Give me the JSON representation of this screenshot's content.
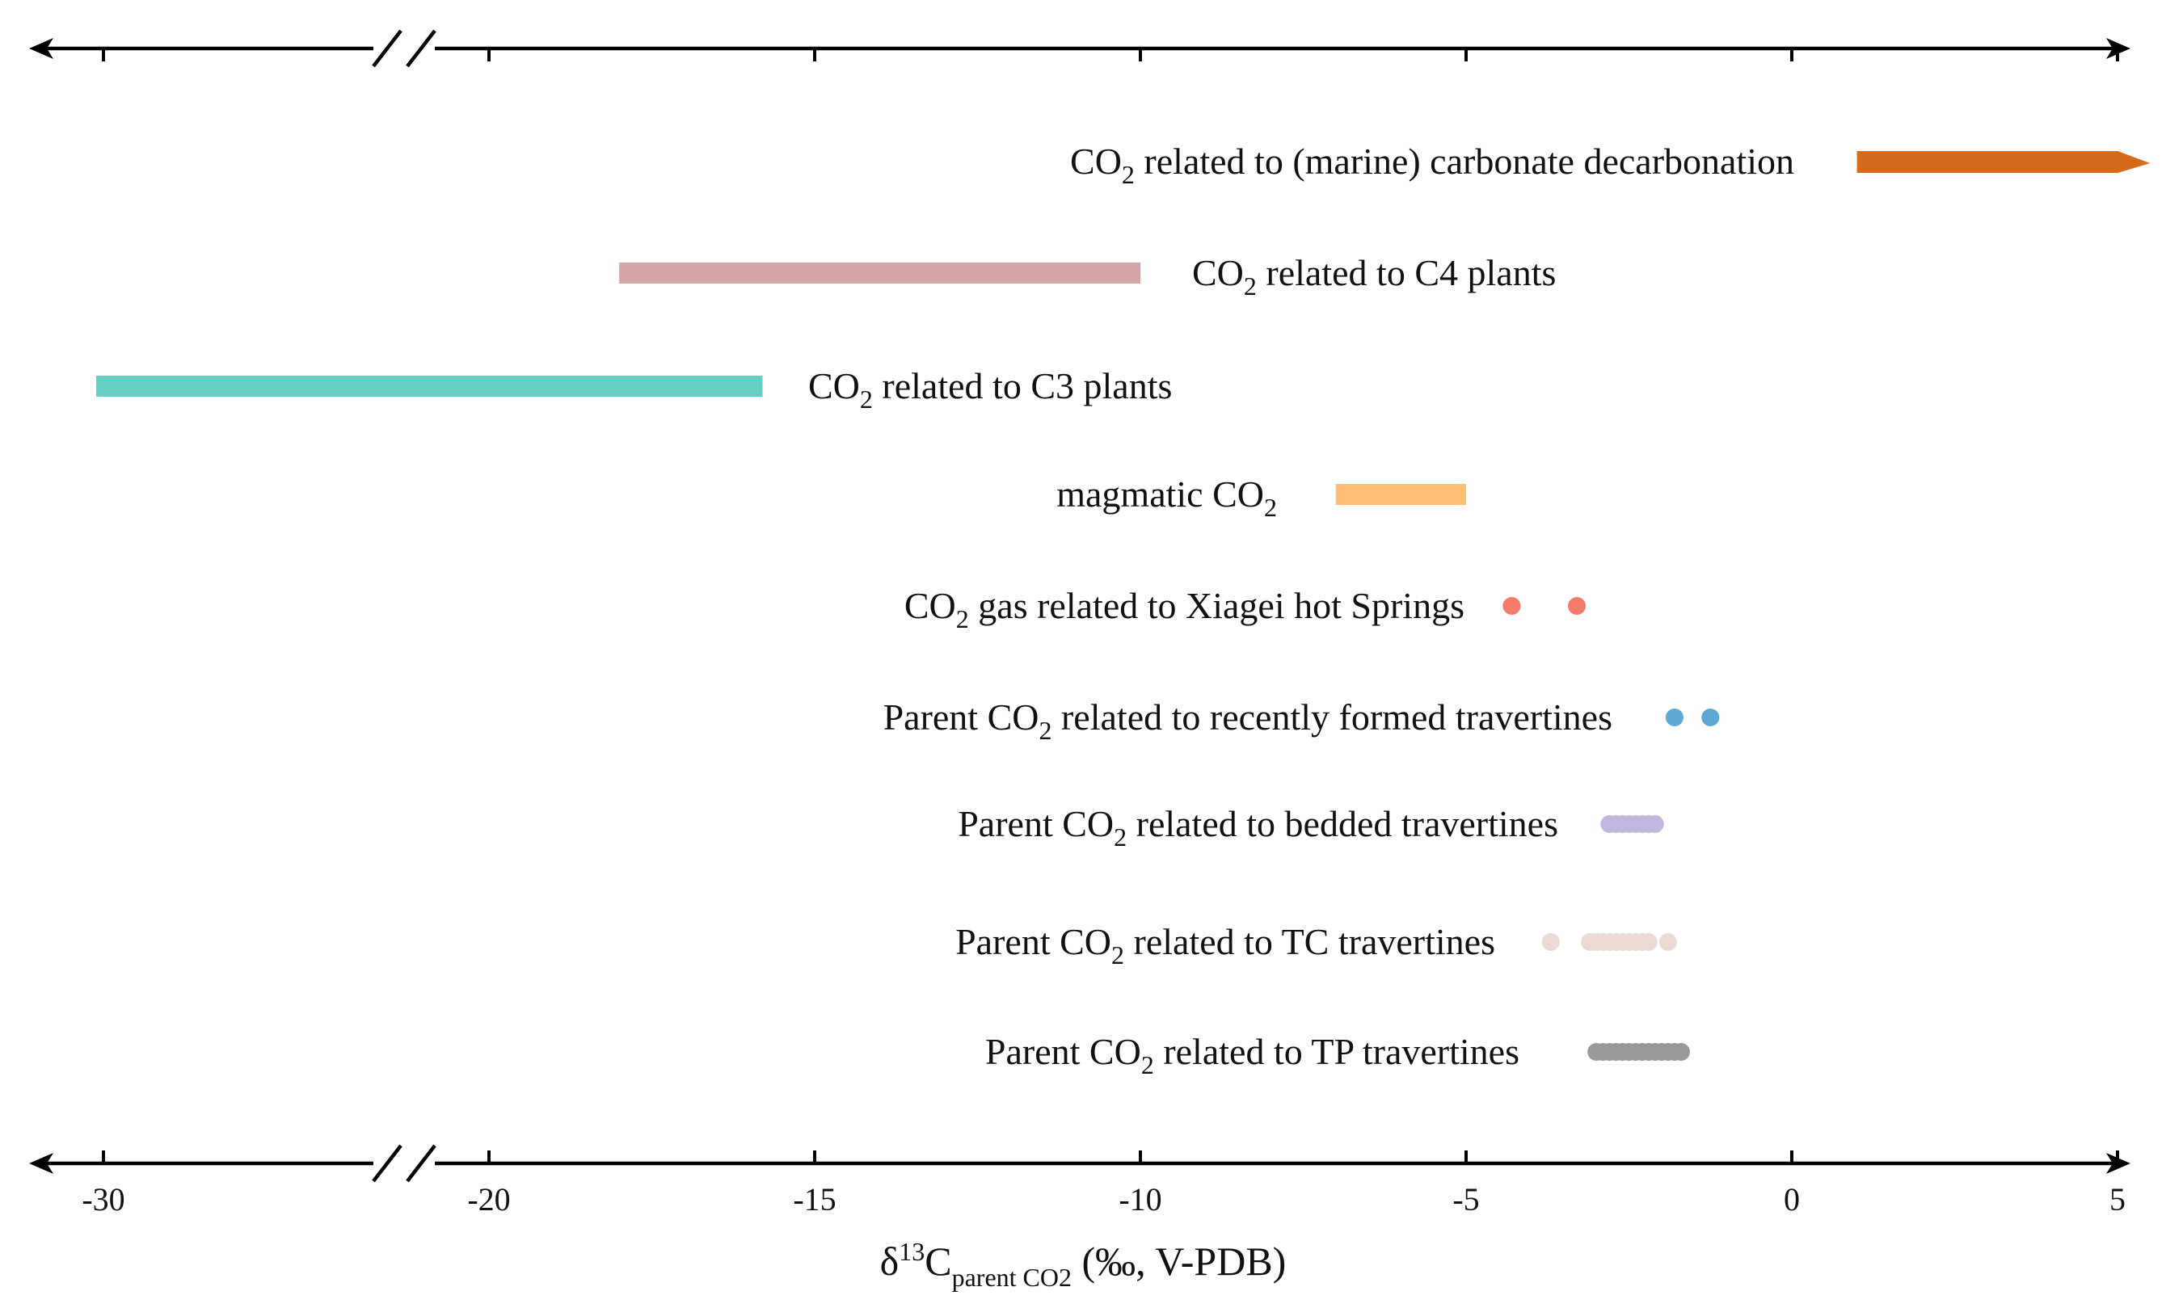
{
  "chart_data": {
    "type": "range",
    "xlabel": {
      "prefix": "δ",
      "sup": "13",
      "base": "C",
      "sub": "parent CO2",
      "suffix": " (‰, V-PDB)"
    },
    "xlim": [
      -30,
      5
    ],
    "axis_break": [
      -25,
      -20
    ],
    "ticks": [
      {
        "value": -30,
        "label": "-30"
      },
      {
        "value": -20,
        "label": "-20"
      },
      {
        "value": -15,
        "label": "-15"
      },
      {
        "value": -10,
        "label": "-10"
      },
      {
        "value": -5,
        "label": "-5"
      },
      {
        "value": 0,
        "label": "0"
      },
      {
        "value": 5,
        "label": "5"
      }
    ],
    "series": [
      {
        "key": "marine",
        "label_parts": [
          "CO",
          "2",
          " related to (marine) carbonate decarbonation"
        ],
        "color": "#D46A1A",
        "mark": "arrow",
        "range": [
          1,
          5.5
        ]
      },
      {
        "key": "c4",
        "label_parts": [
          "CO",
          "2",
          " related to C4 plants"
        ],
        "color": "#D4A5A5",
        "mark": "bar",
        "range": [
          -18,
          -10
        ]
      },
      {
        "key": "c3",
        "label_parts": [
          "CO",
          "2",
          " related to C3 plants"
        ],
        "color": "#66CFC6",
        "mark": "bar",
        "range": [
          -30.2,
          -15.8
        ]
      },
      {
        "key": "magmatic",
        "label_parts": [
          "magmatic CO",
          "2",
          ""
        ],
        "color": "#FDBE75",
        "mark": "bar",
        "range": [
          -7,
          -5
        ]
      },
      {
        "key": "xiagei",
        "label_parts": [
          "CO",
          "2",
          " gas related to Xiagei hot Springs"
        ],
        "color": "#F27B6A",
        "mark": "points",
        "values": [
          -4.3,
          -3.3
        ]
      },
      {
        "key": "recent",
        "label_parts": [
          "Parent CO",
          "2",
          " related to recently formed travertines"
        ],
        "color": "#5FA8D3",
        "mark": "points",
        "values": [
          -1.8,
          -1.25
        ]
      },
      {
        "key": "bedded",
        "label_parts": [
          "Parent CO",
          "2",
          " related to bedded travertines"
        ],
        "color": "#C3B6DE",
        "mark": "points",
        "values": [
          -2.8,
          -2.7,
          -2.6,
          -2.5,
          -2.4,
          -2.3,
          -2.2,
          -2.1
        ]
      },
      {
        "key": "tc",
        "label_parts": [
          "Parent CO",
          "2",
          " related to TC travertines"
        ],
        "color": "#EBD9D3",
        "mark": "points",
        "values": [
          -3.7,
          -3.1,
          -3.0,
          -2.9,
          -2.8,
          -2.7,
          -2.6,
          -2.5,
          -2.4,
          -2.3,
          -2.2,
          -1.9
        ]
      },
      {
        "key": "tp",
        "label_parts": [
          "Parent CO",
          "2",
          " related to TP travertines"
        ],
        "color": "#999999",
        "mark": "points",
        "values": [
          -3.0,
          -2.9,
          -2.8,
          -2.7,
          -2.6,
          -2.5,
          -2.4,
          -2.3,
          -2.2,
          -2.1,
          -2.0,
          -1.9,
          -1.8,
          -1.7
        ]
      }
    ]
  }
}
